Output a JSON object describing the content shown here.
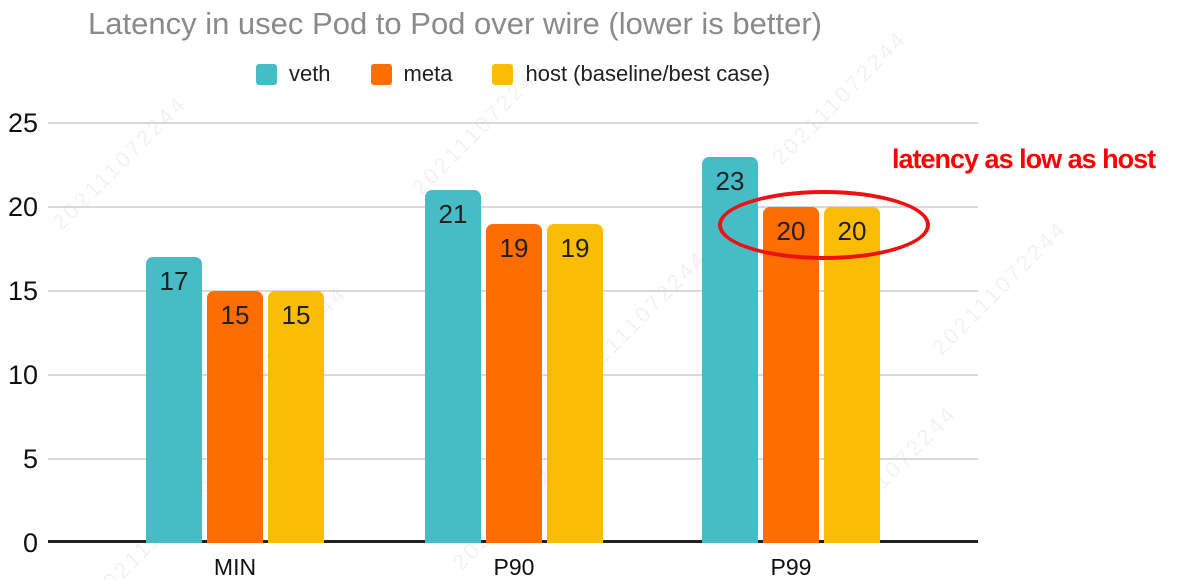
{
  "title": "Latency in usec Pod to Pod over wire (lower is better)",
  "annotation": {
    "text": "latency as low as host",
    "text_color": "#ff0000",
    "ellipse_color": "#ee1111"
  },
  "watermark": {
    "text": "202111072244"
  },
  "colors": {
    "veth": "#46bdc6",
    "meta": "#ff6d01",
    "host": "#fbbc04",
    "title_gray": "#8a8a8a",
    "gridline": "#d9d9d9",
    "axis": "#222222"
  },
  "chart_data": {
    "type": "bar",
    "title": "Latency in usec Pod to Pod over wire (lower is better)",
    "categories": [
      "MIN",
      "P90",
      "P99"
    ],
    "series": [
      {
        "name": "veth",
        "color": "#46bdc6",
        "values": [
          17,
          21,
          23
        ]
      },
      {
        "name": "meta",
        "color": "#ff6d01",
        "values": [
          15,
          19,
          20
        ]
      },
      {
        "name": "host (baseline/best case)",
        "color": "#fbbc04",
        "values": [
          15,
          19,
          20
        ]
      }
    ],
    "xlabel": "",
    "ylabel": "",
    "ylim": [
      0,
      25
    ],
    "yticks": [
      0,
      5,
      10,
      15,
      20,
      25
    ],
    "grid": true,
    "legend_position": "top",
    "value_labels": true
  }
}
